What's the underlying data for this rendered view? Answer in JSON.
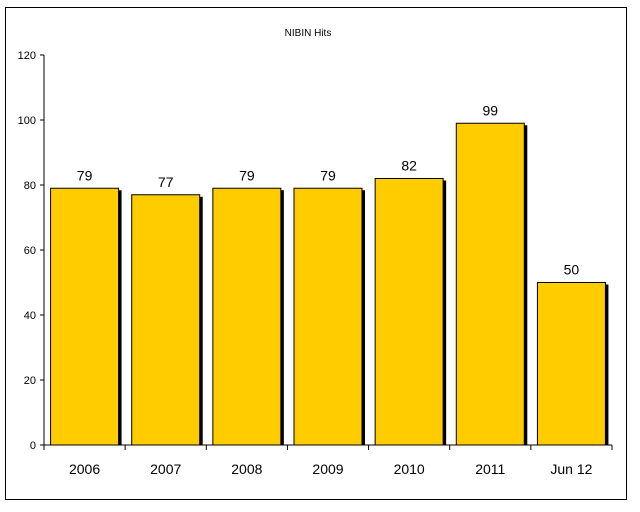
{
  "chart_data": {
    "type": "bar",
    "title": "NIBIN Hits",
    "xlabel": "",
    "ylabel": "",
    "categories": [
      "2006",
      "2007",
      "2008",
      "2009",
      "2010",
      "2011",
      "Jun 12"
    ],
    "values": [
      79,
      77,
      79,
      79,
      82,
      99,
      50
    ],
    "ylim": [
      0,
      120
    ],
    "yticks": [
      0,
      20,
      40,
      60,
      80,
      100,
      120
    ],
    "grid": false,
    "legend": "none",
    "bar_color": "#FFCC00",
    "bar_shadow_color": "#000000"
  }
}
